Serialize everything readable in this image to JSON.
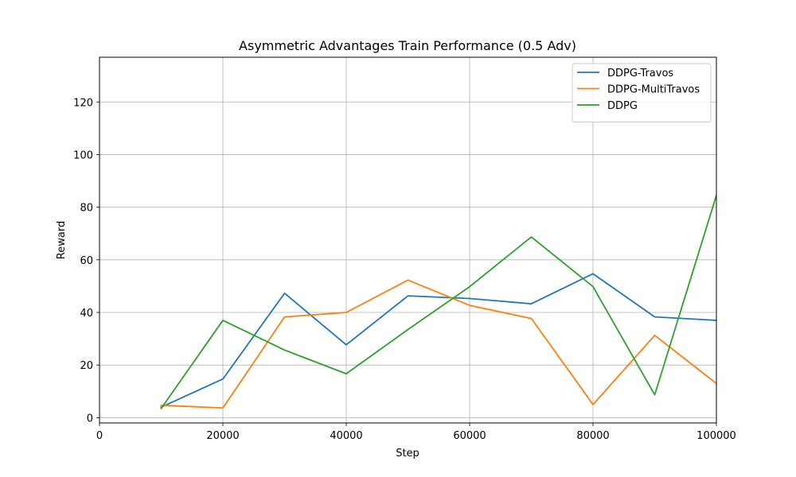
{
  "chart_data": {
    "type": "line",
    "title": "Asymmetric Advantages Train Performance (0.5 Adv)",
    "xlabel": "Step",
    "ylabel": "Reward",
    "xlim": [
      0,
      100000
    ],
    "ylim": [
      -2,
      137
    ],
    "xticks": [
      0,
      20000,
      40000,
      60000,
      80000,
      100000
    ],
    "yticks": [
      0,
      20,
      40,
      60,
      80,
      100,
      120
    ],
    "grid": true,
    "legend_position": "top-right",
    "x": [
      10000,
      20000,
      30000,
      40000,
      50000,
      60000,
      70000,
      80000,
      90000,
      100000
    ],
    "series": [
      {
        "name": "DDPG-Travos",
        "color": "#1f77b4",
        "values": [
          4.0,
          14.7,
          47.3,
          27.7,
          46.3,
          45.3,
          43.3,
          54.7,
          38.3,
          37.0
        ]
      },
      {
        "name": "DDPG-MultiTravos",
        "color": "#ff7f0e",
        "values": [
          4.7,
          3.7,
          38.3,
          40.0,
          52.3,
          42.7,
          37.7,
          5.0,
          31.3,
          13.0
        ]
      },
      {
        "name": "DDPG",
        "color": "#2ca02c",
        "values": [
          3.5,
          37.0,
          25.7,
          16.7,
          33.5,
          49.8,
          68.7,
          49.8,
          8.7,
          84.5
        ]
      }
    ]
  }
}
